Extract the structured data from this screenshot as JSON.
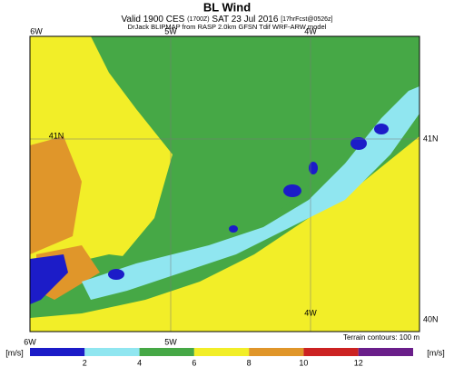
{
  "header": {
    "title": "BL Wind",
    "valid": "Valid 1900 CES",
    "valid_utc": "(1700Z)",
    "valid_date": "SAT 23 Jul 2016",
    "forecast": "[17hrFcst@0526z]",
    "source": "DrJack BLIPMAP from RASP 2.0km GFSN Tdif WRF-ARW model"
  },
  "map": {
    "top_labels": [
      "6W",
      "5W",
      "4W"
    ],
    "right_labels": [
      "41N",
      "40N"
    ],
    "inner_labels": [
      "41N",
      "4W"
    ],
    "bottom_labels": [
      "6W",
      "5W"
    ],
    "terrain_note": "Terrain contours: 100 m"
  },
  "colorbar": {
    "unit_left": "[m/s]",
    "unit_right": "[m/s]",
    "ticks": [
      2,
      4,
      6,
      8,
      10,
      12
    ],
    "colors": [
      "#1c1cc8",
      "#90e6f0",
      "#46a846",
      "#f2ee28",
      "#e0962a",
      "#cc2222",
      "#6a1e8a"
    ]
  }
}
